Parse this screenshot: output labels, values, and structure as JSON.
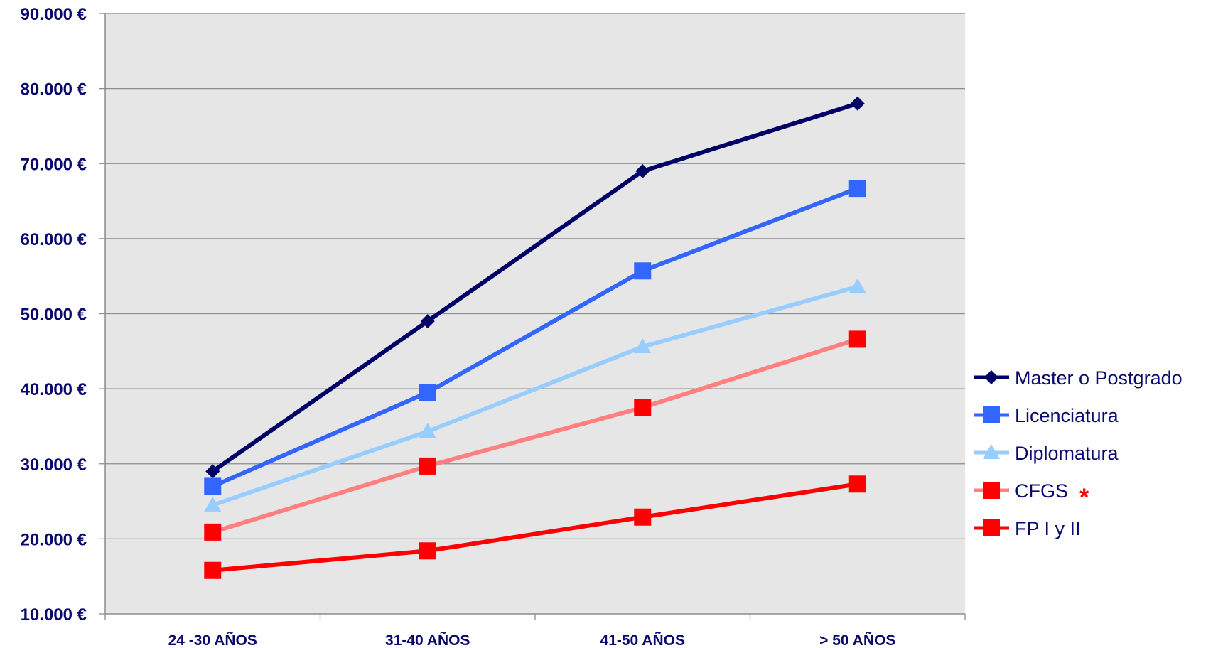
{
  "chart_data": {
    "type": "line",
    "categories": [
      "24 -30 AÑOS",
      "31-40 AÑOS",
      "41-50 AÑOS",
      "> 50 AÑOS"
    ],
    "ylim": [
      10000,
      90000
    ],
    "yticks": [
      10000,
      20000,
      30000,
      40000,
      50000,
      60000,
      70000,
      80000,
      90000
    ],
    "ytick_labels": [
      "10.000 €",
      "20.000 €",
      "30.000 €",
      "40.000 €",
      "50.000 €",
      "60.000 €",
      "70.000 €",
      "80.000 €",
      "90.000 €"
    ],
    "grid": true,
    "legend_position": "right",
    "plot_background": "#e6e6e6",
    "text_color": "#0a0a6e",
    "series": [
      {
        "name": "Master o Postgrado",
        "values": [
          29000,
          49000,
          69000,
          78000
        ],
        "color": "#000066",
        "marker": "diamond"
      },
      {
        "name": "Licenciatura",
        "values": [
          27000,
          39500,
          55700,
          66700
        ],
        "color": "#3366ff",
        "marker": "square"
      },
      {
        "name": "Diplomatura",
        "values": [
          24500,
          34300,
          45600,
          53600
        ],
        "color": "#99ccff",
        "marker": "triangle"
      },
      {
        "name": "CFGS",
        "values": [
          20900,
          29700,
          37500,
          46600
        ],
        "color": "#ff8080",
        "marker": "square-red",
        "note": "*",
        "note_color": "#ff0000"
      },
      {
        "name": "FP I y II",
        "values": [
          15800,
          18400,
          22900,
          27300
        ],
        "color": "#ff0000",
        "marker": "square-red"
      }
    ]
  }
}
